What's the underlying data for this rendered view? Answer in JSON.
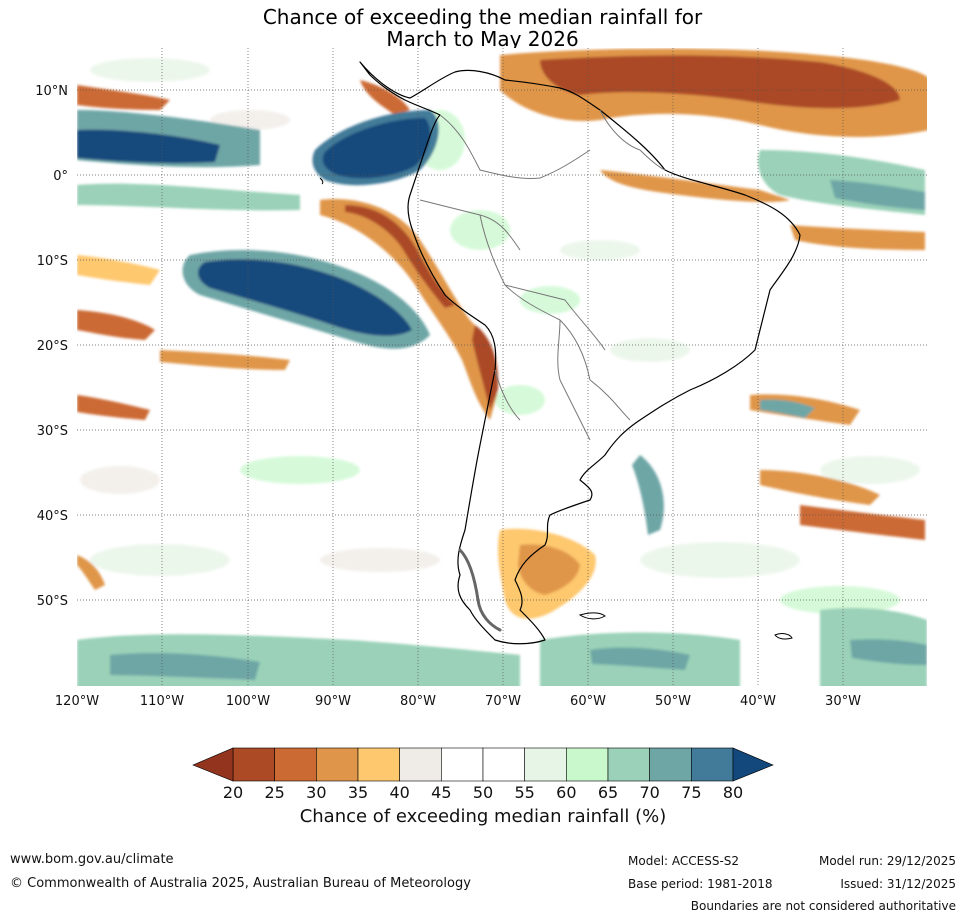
{
  "title": {
    "line1": "Chance of exceeding the median rainfall for",
    "line2": "March to May 2026"
  },
  "map": {
    "lat_labels": [
      "10°N",
      "0°",
      "10°S",
      "20°S",
      "30°S",
      "40°S",
      "50°S"
    ],
    "lon_labels": [
      "120°W",
      "110°W",
      "100°W",
      "90°W",
      "80°W",
      "70°W",
      "60°W",
      "50°W",
      "40°W",
      "30°W"
    ],
    "extent": {
      "lon_min": -120,
      "lon_max": -20,
      "lat_min": -60,
      "lat_max": 15
    }
  },
  "colorbar": {
    "ticks": [
      "20",
      "25",
      "30",
      "35",
      "40",
      "45",
      "50",
      "55",
      "60",
      "65",
      "70",
      "75",
      "80"
    ],
    "colors": [
      "#ab4a25",
      "#cc6a34",
      "#e0964a",
      "#fec86e",
      "#efebe6",
      "#ffffff",
      "#ffffff",
      "#e6f5e6",
      "#c8f8cc",
      "#9ad1b8",
      "#6ea6a6",
      "#427b99"
    ],
    "under_color": "#93351e",
    "over_color": "#12487c",
    "label": "Chance of exceeding median rainfall (%)"
  },
  "footer": {
    "website": "www.bom.gov.au/climate",
    "copyright": "© Commonwealth of Australia 2025, Australian Bureau of Meteorology",
    "model": "Model: ACCESS-S2",
    "base_period": "Base period: 1981-2018",
    "model_run": "Model run: 29/12/2025",
    "issued": "Issued: 31/12/2025",
    "disclaimer": "Boundaries are not considered authoritative"
  }
}
